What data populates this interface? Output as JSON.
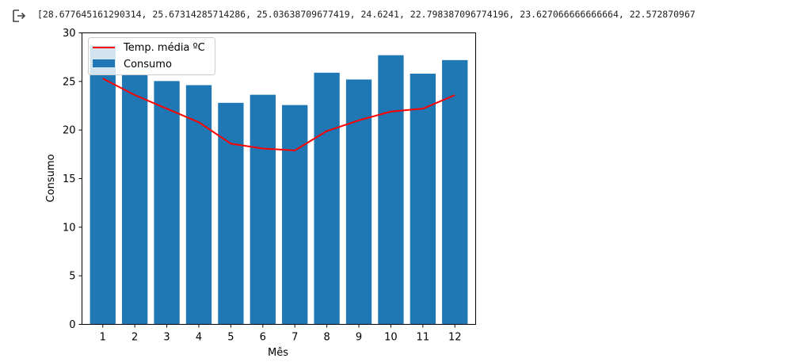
{
  "output": {
    "icon": "output-arrow-icon",
    "text": "[28.677645161290314, 25.67314285714286, 25.03638709677419, 24.6241, 22.798387096774196, 23.627066666666664, 22.572870967"
  },
  "chart_data": {
    "type": "bar",
    "categories": [
      "1",
      "2",
      "3",
      "4",
      "5",
      "6",
      "7",
      "8",
      "9",
      "10",
      "11",
      "12"
    ],
    "x": [
      1,
      2,
      3,
      4,
      5,
      6,
      7,
      8,
      9,
      10,
      11,
      12
    ],
    "series": [
      {
        "name": "Consumo",
        "type": "bar",
        "color": "#1f77b4",
        "values": [
          28.68,
          25.67,
          25.04,
          24.62,
          22.8,
          23.63,
          22.57,
          25.9,
          25.2,
          27.7,
          25.8,
          27.2
        ]
      },
      {
        "name": "Temp. média ºC",
        "type": "line",
        "color": "#ff0000",
        "values": [
          25.3,
          23.6,
          22.2,
          20.8,
          18.6,
          18.1,
          17.9,
          19.9,
          21.0,
          21.9,
          22.2,
          23.6
        ]
      }
    ],
    "title": "",
    "xlabel": "Mês",
    "ylabel": "Consumo",
    "ylim": [
      0,
      30
    ],
    "yticks": [
      0,
      5,
      10,
      15,
      20,
      25,
      30
    ],
    "grid": false,
    "legend": "top-left"
  }
}
